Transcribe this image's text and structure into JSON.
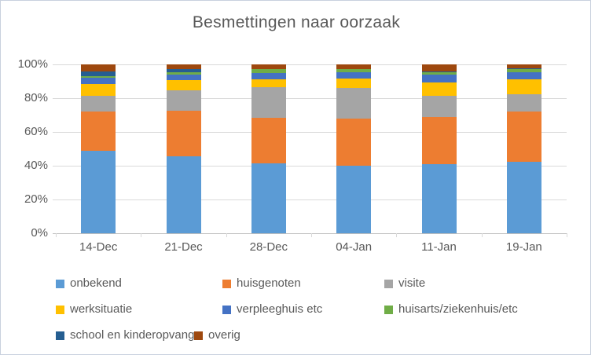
{
  "chart_data": {
    "type": "bar",
    "variant": "stacked-100-percent",
    "title": "Besmettingen naar oorzaak",
    "categories": [
      "14-Dec",
      "21-Dec",
      "28-Dec",
      "04-Jan",
      "11-Jan",
      "19-Jan"
    ],
    "series": [
      {
        "name": "onbekend",
        "color": "#5B9BD5",
        "values": [
          49,
          45.5,
          41.5,
          40,
          41,
          42.5
        ]
      },
      {
        "name": "huisgenoten",
        "color": "#ED7D31",
        "values": [
          23,
          27,
          27,
          28,
          28,
          29.5
        ]
      },
      {
        "name": "visite",
        "color": "#A5A5A5",
        "values": [
          9.5,
          12,
          18,
          18,
          12.5,
          10.5
        ]
      },
      {
        "name": "werksituatie",
        "color": "#FFC000",
        "values": [
          7,
          6,
          4.5,
          5.5,
          8,
          8.5
        ]
      },
      {
        "name": "verpleeghuis etc",
        "color": "#4472C4",
        "values": [
          3.5,
          3.5,
          4,
          4,
          4.5,
          4.5
        ]
      },
      {
        "name": "huisarts/ziekenhuis/etc",
        "color": "#70AD47",
        "values": [
          1,
          1.5,
          2,
          1.5,
          1.5,
          1.5
        ]
      },
      {
        "name": "school en kinderopvang",
        "color": "#255E91",
        "values": [
          3,
          1.5,
          0,
          0,
          0.5,
          0.5
        ]
      },
      {
        "name": "overig",
        "color": "#9E480E",
        "values": [
          4,
          3,
          3,
          3,
          4,
          2.5
        ]
      }
    ],
    "y_axis": {
      "min": 0,
      "max": 100,
      "tick_step": 20,
      "tick_labels": [
        "0%",
        "20%",
        "40%",
        "60%",
        "80%",
        "100%"
      ],
      "grid": true
    },
    "x_axis": {
      "tick_labels": [
        "14-Dec",
        "21-Dec",
        "28-Dec",
        "04-Jan",
        "11-Jan",
        "19-Jan"
      ]
    },
    "legend_position": "bottom"
  },
  "colors": {
    "text": "#595959",
    "gridline": "#D9D9D9",
    "axis_line": "#BFBFBF",
    "chart_border": "#C9D1DE",
    "background": "#FFFFFF"
  }
}
